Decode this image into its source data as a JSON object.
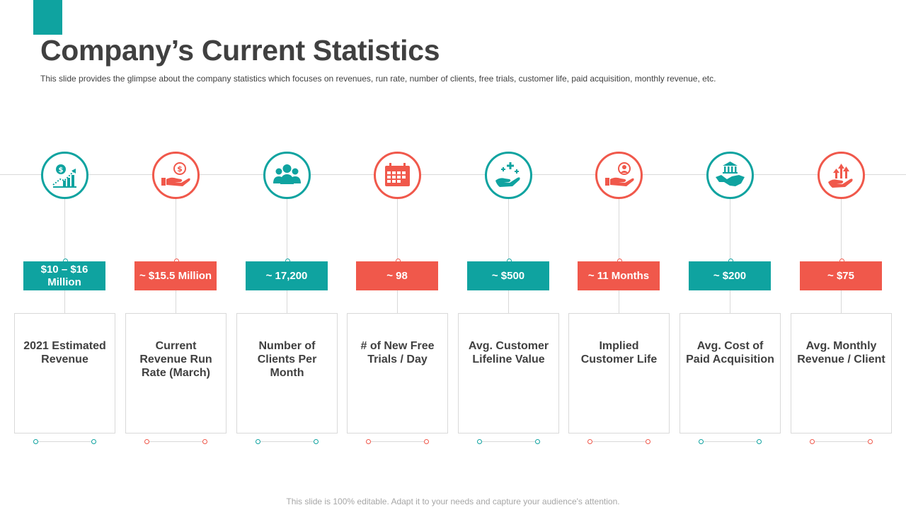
{
  "title": "Company’s Current Statistics",
  "subtitle": "This slide provides  the glimpse about the company statistics which focuses on revenues,  run rate, number of clients, free  trials, customer life, paid acquisition, monthly revenue,  etc.",
  "colors": {
    "teal": "#0fa3a0",
    "red": "#f0584b",
    "text": "#404040",
    "line": "#d9d9d9"
  },
  "stats": [
    {
      "value": "$10 – $16 Million",
      "label": "2021 Estimated Revenue",
      "icon": "dollar-growth-chart-icon",
      "color": "teal"
    },
    {
      "value": "~ $15.5 Million",
      "label": "Current Revenue Run Rate (March)",
      "icon": "hand-dollar-coin-icon",
      "color": "red"
    },
    {
      "value": "~ 17,200",
      "label": "Number of Clients Per Month",
      "icon": "people-group-icon",
      "color": "teal"
    },
    {
      "value": "~ 98",
      "label": "# of New Free Trials / Day",
      "icon": "calendar-icon",
      "color": "red"
    },
    {
      "value": "~ $500",
      "label": "Avg. Customer Lifeline Value",
      "icon": "hand-plus-sparkle-icon",
      "color": "teal"
    },
    {
      "value": "~ 11 Months",
      "label": "Implied Customer Life",
      "icon": "hand-user-icon",
      "color": "red"
    },
    {
      "value": "~ $200",
      "label": "Avg. Cost of Paid Acquisition",
      "icon": "handshake-bank-icon",
      "color": "teal"
    },
    {
      "value": "~ $75",
      "label": "Avg. Monthly Revenue / Client",
      "icon": "hand-growth-arrows-icon",
      "color": "red"
    }
  ],
  "footer": "This slide is 100% editable. Adapt it to your needs and capture your audience's attention."
}
